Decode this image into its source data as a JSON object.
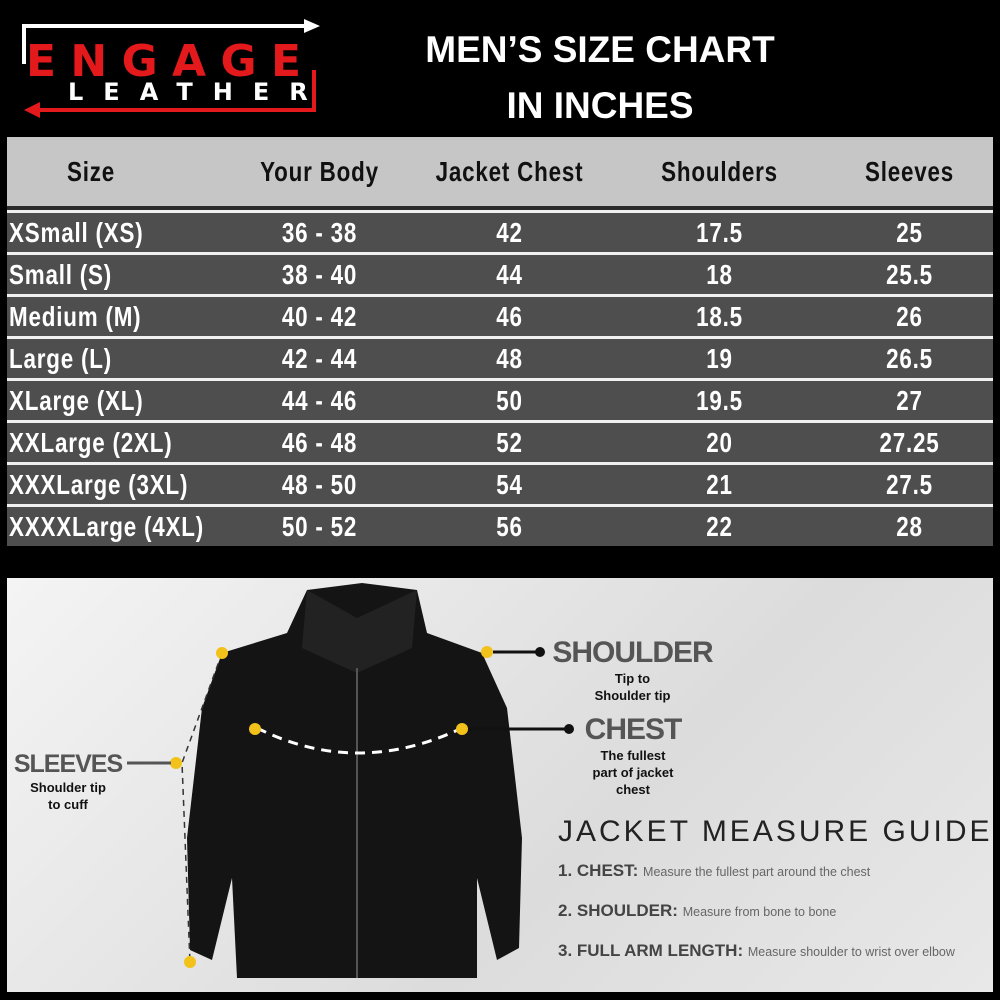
{
  "logo": {
    "line1": "ENGAGE",
    "line2": "LEATHER",
    "colors": {
      "red": "#e3191b",
      "white": "#ffffff"
    }
  },
  "title": {
    "line1": "MEN’S SIZE CHART",
    "line2": "IN INCHES"
  },
  "table": {
    "headers": [
      "Size",
      "Your Body",
      "Jacket Chest",
      "Shoulders",
      "Sleeves"
    ],
    "rows": [
      [
        "XSmall (XS)",
        "36 - 38",
        "42",
        "17.5",
        "25"
      ],
      [
        "Small (S)",
        "38 - 40",
        "44",
        "18",
        "25.5"
      ],
      [
        "Medium (M)",
        "40 - 42",
        "46",
        "18.5",
        "26"
      ],
      [
        "Large (L)",
        "42 - 44",
        "48",
        "19",
        "26.5"
      ],
      [
        "XLarge (XL)",
        "44 - 46",
        "50",
        "19.5",
        "27"
      ],
      [
        "XXLarge (2XL)",
        "46 - 48",
        "52",
        "20",
        "27.25"
      ],
      [
        "XXXLarge (3XL)",
        "48 - 50",
        "54",
        "21",
        "27.5"
      ],
      [
        "XXXXLarge (4XL)",
        "50 - 52",
        "56",
        "22",
        "28"
      ]
    ],
    "colors": {
      "header_bg": "#c6c6c6",
      "row_bg": "#4e4e4e"
    }
  },
  "diagram": {
    "shoulder": {
      "label": "SHOULDER",
      "desc1": "Tip to",
      "desc2": "Shoulder tip"
    },
    "chest": {
      "label": "CHEST",
      "desc1": "The fullest",
      "desc2": "part  of jacket",
      "desc3": "chest"
    },
    "sleeves": {
      "label": "SLEEVES",
      "desc1": "Shoulder tip",
      "desc2": "to cuff"
    },
    "marker_color": "#f2c21b"
  },
  "guide": {
    "title": "JACKET MEASURE GUIDE",
    "steps": [
      {
        "label": "1. CHEST:",
        "desc": "Measure the fullest part around the chest"
      },
      {
        "label": "2. SHOULDER:",
        "desc": "Measure from bone to bone"
      },
      {
        "label": "3. FULL ARM LENGTH:",
        "desc": "Measure shoulder to wrist over elbow"
      }
    ]
  }
}
